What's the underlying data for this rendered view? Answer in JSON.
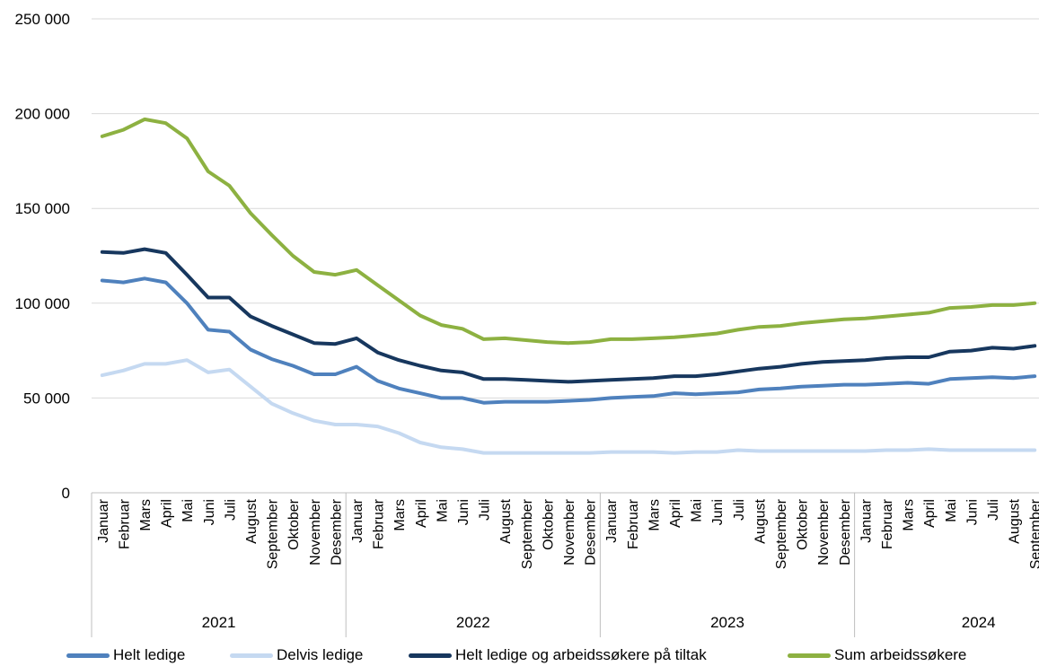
{
  "chart_data": {
    "type": "line",
    "title": "",
    "xlabel": "",
    "ylabel": "",
    "ylim": [
      0,
      250000
    ],
    "y_ticks": [
      0,
      50000,
      100000,
      150000,
      200000,
      250000
    ],
    "y_tick_labels": [
      "0",
      "50 000",
      "100 000",
      "150 000",
      "200 000",
      "250 000"
    ],
    "grid": true,
    "legend_position": "bottom",
    "years": [
      {
        "label": "2021",
        "months": [
          "Januar",
          "Februar",
          "Mars",
          "April",
          "Mai",
          "Juni",
          "Juli",
          "August",
          "September",
          "Oktober",
          "November",
          "Desember"
        ]
      },
      {
        "label": "2022",
        "months": [
          "Januar",
          "Februar",
          "Mars",
          "April",
          "Mai",
          "Juni",
          "Juli",
          "August",
          "September",
          "Oktober",
          "November",
          "Desember"
        ]
      },
      {
        "label": "2023",
        "months": [
          "Januar",
          "Februar",
          "Mars",
          "April",
          "Mai",
          "Juni",
          "Juli",
          "August",
          "September",
          "Oktober",
          "November",
          "Desember"
        ]
      },
      {
        "label": "2024",
        "months": [
          "Januar",
          "Februar",
          "Mars",
          "April",
          "Mai",
          "Juni",
          "Juli",
          "August",
          "September"
        ]
      }
    ],
    "series": [
      {
        "name": "Helt ledige",
        "color": "#4f81bd",
        "values": [
          112000,
          111000,
          113000,
          111000,
          100000,
          86000,
          85000,
          75500,
          70500,
          67000,
          62500,
          62500,
          66500,
          59000,
          55000,
          52500,
          50000,
          50000,
          47500,
          48000,
          48000,
          48000,
          48500,
          49000,
          50000,
          50500,
          51000,
          52500,
          52000,
          52500,
          53000,
          54500,
          55000,
          56000,
          56500,
          57000,
          57000,
          57500,
          58000,
          57500,
          60000,
          60500,
          61000,
          60500,
          61500
        ]
      },
      {
        "name": "Delvis ledige",
        "color": "#c5d9f1",
        "values": [
          62000,
          64500,
          68000,
          68000,
          70000,
          63500,
          65000,
          56000,
          47000,
          42000,
          38000,
          36000,
          36000,
          35000,
          31500,
          26500,
          24000,
          23000,
          21000,
          21000,
          21000,
          21000,
          21000,
          21000,
          21500,
          21500,
          21500,
          21000,
          21500,
          21500,
          22500,
          22000,
          22000,
          22000,
          22000,
          22000,
          22000,
          22500,
          22500,
          23000,
          22500,
          22500,
          22500,
          22500,
          22500
        ]
      },
      {
        "name": "Helt ledige og arbeidssøkere på tiltak",
        "color": "#17375e",
        "values": [
          127000,
          126500,
          128500,
          126500,
          115000,
          103000,
          103000,
          93000,
          88000,
          83500,
          79000,
          78500,
          81500,
          74000,
          70000,
          67000,
          64500,
          63500,
          60000,
          60000,
          59500,
          59000,
          58500,
          59000,
          59500,
          60000,
          60500,
          61500,
          61500,
          62500,
          64000,
          65500,
          66500,
          68000,
          69000,
          69500,
          70000,
          71000,
          71500,
          71500,
          74500,
          75000,
          76500,
          76000,
          77500
        ]
      },
      {
        "name": "Sum arbeidssøkere",
        "color": "#8db141",
        "values": [
          188000,
          191500,
          197000,
          195000,
          187000,
          169500,
          162000,
          147500,
          136000,
          125000,
          116500,
          115000,
          117500,
          109500,
          101500,
          93500,
          88500,
          86500,
          81000,
          81500,
          80500,
          79500,
          79000,
          79500,
          81000,
          81000,
          81500,
          82000,
          83000,
          84000,
          86000,
          87500,
          88000,
          89500,
          90500,
          91500,
          92000,
          93000,
          94000,
          95000,
          97500,
          98000,
          99000,
          99000,
          100000
        ]
      }
    ]
  }
}
